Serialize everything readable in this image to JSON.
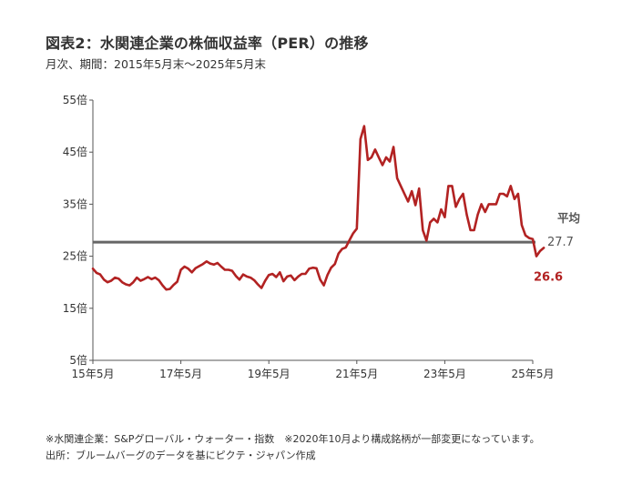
{
  "chart_data": {
    "type": "line",
    "title": "図表2：水関連企業の株価収益率（PER）の推移",
    "subtitle": "月次、期間：2015年5月末～2025年5月末",
    "y_ticks": [
      "55倍",
      "45倍",
      "35倍",
      "25倍",
      "15倍",
      "5倍"
    ],
    "y_tick_values": [
      55,
      45,
      35,
      25,
      15,
      5
    ],
    "ylim": [
      5,
      55
    ],
    "x_ticks": [
      "15年5月",
      "17年5月",
      "19年5月",
      "21年5月",
      "23年5月",
      "25年5月"
    ],
    "x_tick_positions": [
      0,
      24,
      48,
      72,
      96,
      120
    ],
    "xlim": [
      0,
      120
    ],
    "grid": false,
    "series": [
      {
        "color": "#B22222",
        "values": [
          22.6,
          21.8,
          21.5,
          20.5,
          20.0,
          20.3,
          20.9,
          20.7,
          20.0,
          19.6,
          19.4,
          20.0,
          20.9,
          20.3,
          20.6,
          21.0,
          20.6,
          20.9,
          20.4,
          19.4,
          18.6,
          18.7,
          19.5,
          20.1,
          22.4,
          23.0,
          22.6,
          21.9,
          22.7,
          23.1,
          23.5,
          24.0,
          23.6,
          23.4,
          23.7,
          23.0,
          22.4,
          22.4,
          22.2,
          21.2,
          20.5,
          21.5,
          21.1,
          20.9,
          20.4,
          19.6,
          18.9,
          20.3,
          21.4,
          21.6,
          21.0,
          21.9,
          20.2,
          21.1,
          21.3,
          20.4,
          21.1,
          21.6,
          21.6,
          22.6,
          22.8,
          22.7,
          20.5,
          19.4,
          21.4,
          22.8,
          23.5,
          25.5,
          26.4,
          26.7,
          28.1,
          29.4,
          30.3,
          47.5,
          50.0,
          43.5,
          44.0,
          45.5,
          44.0,
          42.5,
          44.0,
          43.2,
          46.0,
          40.0,
          38.5,
          37.0,
          35.5,
          37.5,
          34.8,
          38.0,
          30.0,
          28.0,
          31.5,
          32.2,
          31.5,
          34.0,
          32.5,
          38.5,
          38.5,
          34.5,
          36.0,
          37.0,
          33.0,
          30.0,
          30.0,
          33.0,
          35.0,
          33.5,
          35.0,
          35.0,
          35.0,
          37.0,
          37.0,
          36.5,
          38.5,
          36.0,
          37.0,
          31.0,
          29.0,
          28.5,
          28.3,
          25.0,
          26.0,
          26.6
        ]
      }
    ],
    "reference_line": {
      "value": 27.7,
      "color": "#666666",
      "label": "平均",
      "value_label": "27.7"
    },
    "last_value_label": "26.6"
  },
  "notes": [
    "※水関連企業：S&Pグローバル・ウォーター・指数　※2020年10月より構成銘柄が一部変更になっています。",
    "出所：ブルームバーグのデータを基にピクテ・ジャパン作成"
  ]
}
